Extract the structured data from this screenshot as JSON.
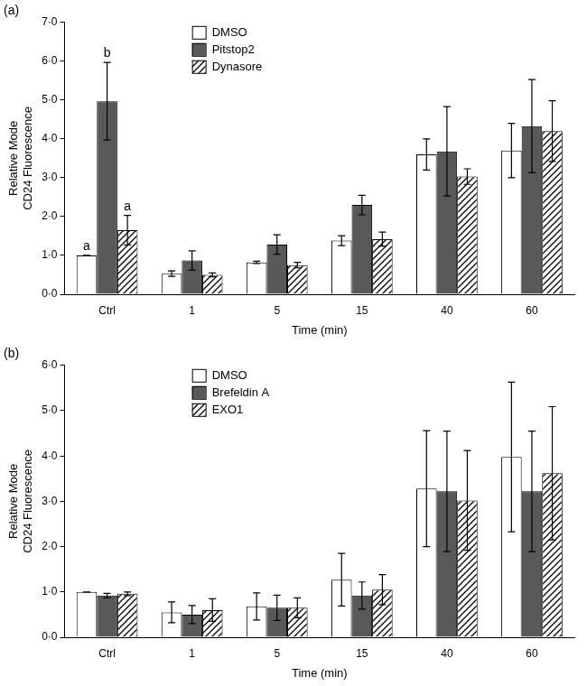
{
  "chart_data": [
    {
      "type": "bar",
      "title": "(a)",
      "categories": [
        "Ctrl",
        "1",
        "5",
        "15",
        "40",
        "60"
      ],
      "x_label": "Time (min)",
      "y_label": [
        "Relative Mode",
        "CD24 Fluorescence"
      ],
      "ylim": [
        0,
        7
      ],
      "yticks": [
        {
          "value": 0,
          "label": "0·0"
        },
        {
          "value": 1,
          "label": "1·0"
        },
        {
          "value": 2,
          "label": "2·0"
        },
        {
          "value": 3,
          "label": "3·0"
        },
        {
          "value": 4,
          "label": "4·0"
        },
        {
          "value": 5,
          "label": "5·0"
        },
        {
          "value": 6,
          "label": "6·0"
        },
        {
          "value": 7,
          "label": "7·0"
        }
      ],
      "grid": false,
      "legend": "top",
      "series": [
        {
          "name": "DMSO",
          "color": "#ffffff",
          "values": [
            1.0,
            0.53,
            0.82,
            1.38,
            3.6,
            3.7
          ],
          "errors": [
            0,
            0.07,
            0.03,
            0.13,
            0.4,
            0.7
          ]
        },
        {
          "name": "Pitstop2",
          "color": "#595959",
          "values": [
            4.97,
            0.87,
            1.28,
            2.3,
            3.68,
            4.33
          ],
          "errors": [
            1.0,
            0.25,
            0.25,
            0.25,
            1.15,
            1.2
          ]
        },
        {
          "name": "Dynasore",
          "color": "#000000",
          "values": [
            1.65,
            0.5,
            0.75,
            1.42,
            3.03,
            4.2
          ],
          "errors": [
            0.38,
            0.05,
            0.07,
            0.18,
            0.2,
            0.78
          ]
        }
      ],
      "annotations": [
        {
          "category": "Ctrl",
          "series": "DMSO",
          "text": "a"
        },
        {
          "category": "Ctrl",
          "series": "Pitstop2",
          "text": "b"
        },
        {
          "category": "Ctrl",
          "series": "Dynasore",
          "text": "a"
        }
      ]
    },
    {
      "type": "bar",
      "title": "(b)",
      "categories": [
        "Ctrl",
        "1",
        "5",
        "15",
        "40",
        "60"
      ],
      "x_label": "Time (min)",
      "y_label": [
        "Relative Mode",
        "CD24 Fluorescence"
      ],
      "ylim": [
        0,
        6
      ],
      "yticks": [
        {
          "value": 0,
          "label": "0·0"
        },
        {
          "value": 1,
          "label": "1·0"
        },
        {
          "value": 2,
          "label": "2·0"
        },
        {
          "value": 3,
          "label": "3·0"
        },
        {
          "value": 4,
          "label": "4·0"
        },
        {
          "value": 5,
          "label": "5·0"
        },
        {
          "value": 6,
          "label": "6·0"
        }
      ],
      "grid": false,
      "legend": "top",
      "series": [
        {
          "name": "DMSO",
          "color": "#ffffff",
          "values": [
            1.0,
            0.55,
            0.68,
            1.27,
            3.28,
            3.98
          ],
          "errors": [
            0,
            0.23,
            0.3,
            0.58,
            1.28,
            1.65
          ]
        },
        {
          "name": "Brefeldin A",
          "color": "#595959",
          "values": [
            0.92,
            0.5,
            0.65,
            0.92,
            3.22,
            3.22
          ],
          "errors": [
            0.05,
            0.2,
            0.28,
            0.3,
            1.33,
            1.33
          ]
        },
        {
          "name": "EXO1",
          "color": "#000000",
          "values": [
            0.96,
            0.6,
            0.65,
            1.05,
            3.02,
            3.62
          ],
          "errors": [
            0.04,
            0.25,
            0.22,
            0.33,
            1.1,
            1.47
          ]
        }
      ]
    }
  ]
}
